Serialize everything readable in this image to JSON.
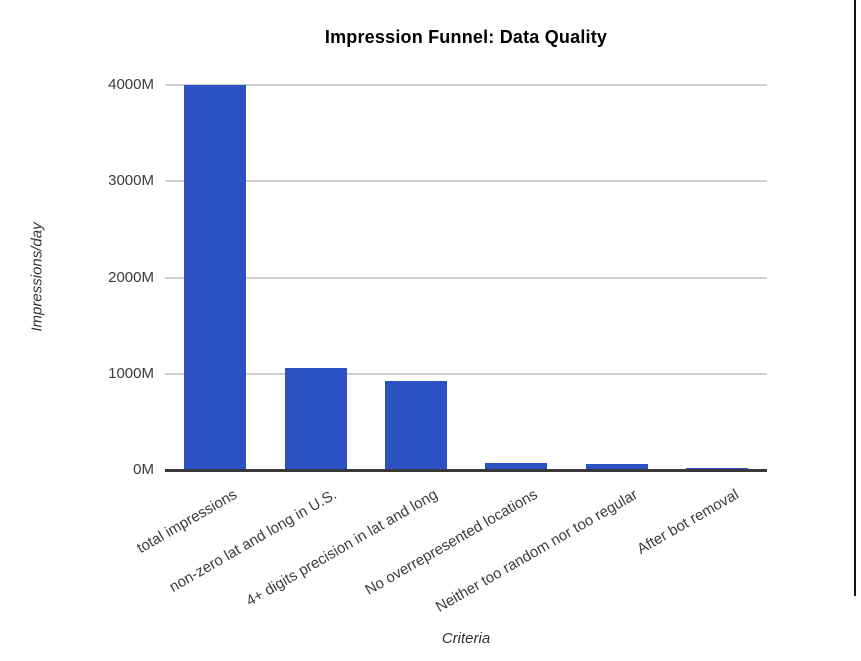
{
  "chart_data": {
    "type": "bar",
    "title": "Impression Funnel: Data Quality",
    "xlabel": "Criteria",
    "ylabel": "Impressions/day",
    "categories": [
      "total impressions",
      "non-zero lat and long in U.S.",
      "4+ digits precision in lat and long",
      "No overrepresented locations",
      "Neither too random nor too regular",
      "After bot removal"
    ],
    "values": [
      4000,
      1060,
      930,
      78,
      60,
      20
    ],
    "unit": "M",
    "ylim": [
      0,
      4000
    ],
    "yticks": [
      0,
      1000,
      2000,
      3000,
      4000
    ],
    "ytick_labels": [
      "0M",
      "1000M",
      "2000M",
      "3000M",
      "4000M"
    ],
    "grid": true,
    "legend": "none",
    "label_rotation_deg": -30,
    "colors": {
      "bar": "#2b51c3",
      "gridline": "#cfcfcf",
      "axis_line": "#383838",
      "tick_text": "#3c3c3c",
      "title_text": "#000000"
    }
  },
  "decorations": {
    "right_edge_line_color": "#141414"
  }
}
